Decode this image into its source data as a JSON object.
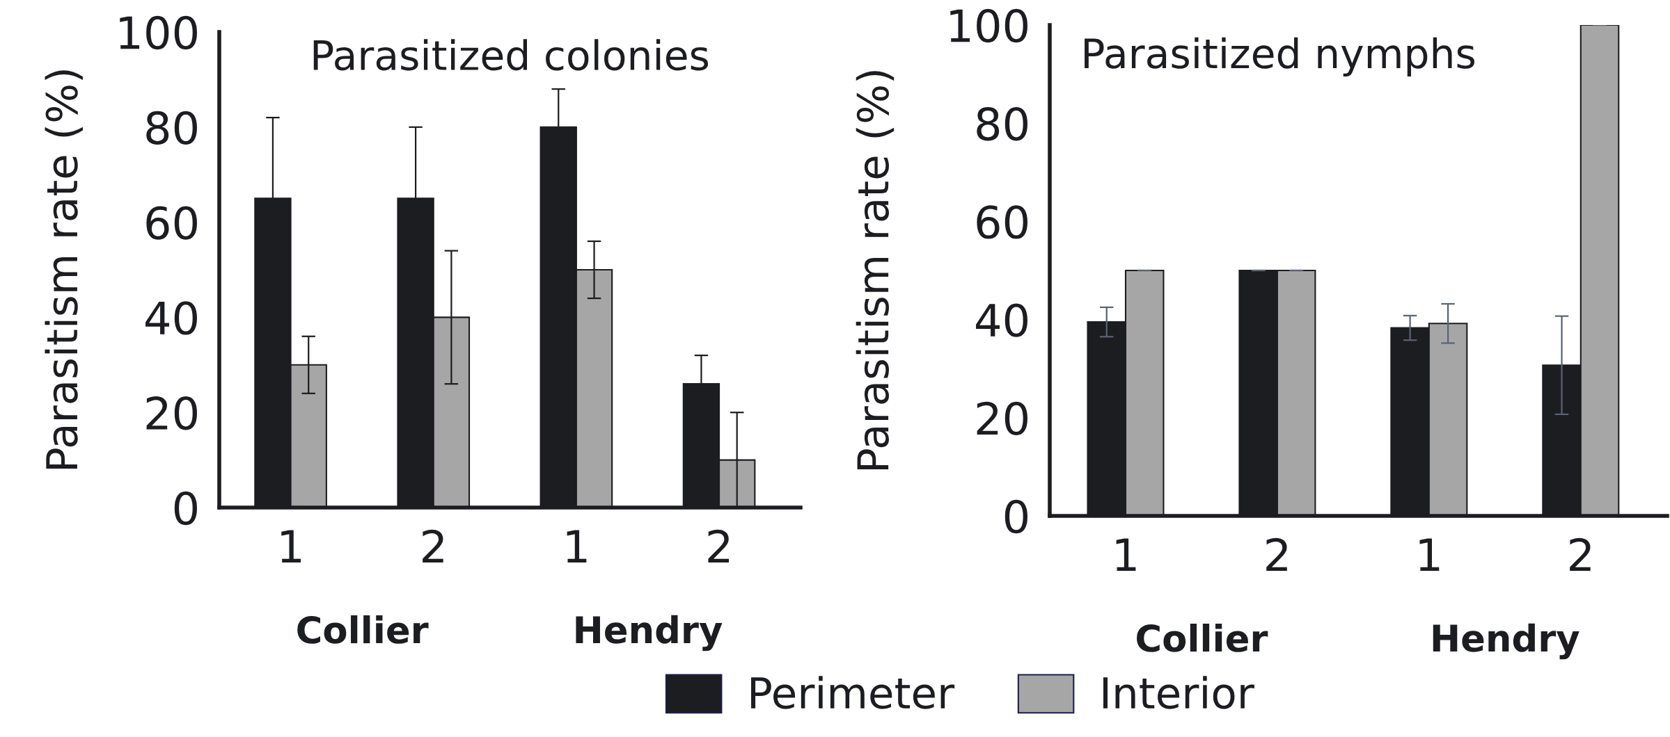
{
  "chart_data": [
    {
      "type": "bar",
      "title": "Parasitized colonies",
      "ylabel": "Parasitism rate (%)",
      "categories": [
        "1",
        "2",
        "1",
        "2"
      ],
      "annotations": [
        "Collier",
        "Hendry"
      ],
      "series": [
        {
          "name": "Perimeter",
          "color": "#1c1d21",
          "values": [
            65,
            65,
            80,
            26
          ],
          "errors": [
            17,
            15,
            8,
            6
          ]
        },
        {
          "name": "Interior",
          "color": "#a6a6a6",
          "values": [
            30,
            40,
            50,
            10
          ],
          "errors": [
            6,
            14,
            6,
            10
          ]
        }
      ],
      "ylim": [
        0,
        100
      ],
      "yticks": [
        0,
        20,
        40,
        60,
        80,
        100
      ],
      "grid": false,
      "legend": "bottom"
    },
    {
      "type": "bar",
      "title": "Parasitized nymphs",
      "ylabel": "Parasitism rate (%)",
      "categories": [
        "1",
        "2",
        "1",
        "2"
      ],
      "annotations": [
        "Collier",
        "Hendry"
      ],
      "series": [
        {
          "color": "#1c1d21",
          "values": [
            39.5,
            50,
            38.3,
            30.7
          ],
          "errors": [
            3,
            0,
            2.5,
            10
          ]
        },
        {
          "color": "#a6a6a6",
          "values": [
            50,
            50,
            39.2,
            100
          ],
          "errors": [
            0,
            0,
            4,
            0
          ]
        }
      ],
      "ylim": [
        0,
        100
      ],
      "yticks": [
        0,
        20,
        40,
        60,
        80,
        100
      ],
      "grid": false
    }
  ]
}
